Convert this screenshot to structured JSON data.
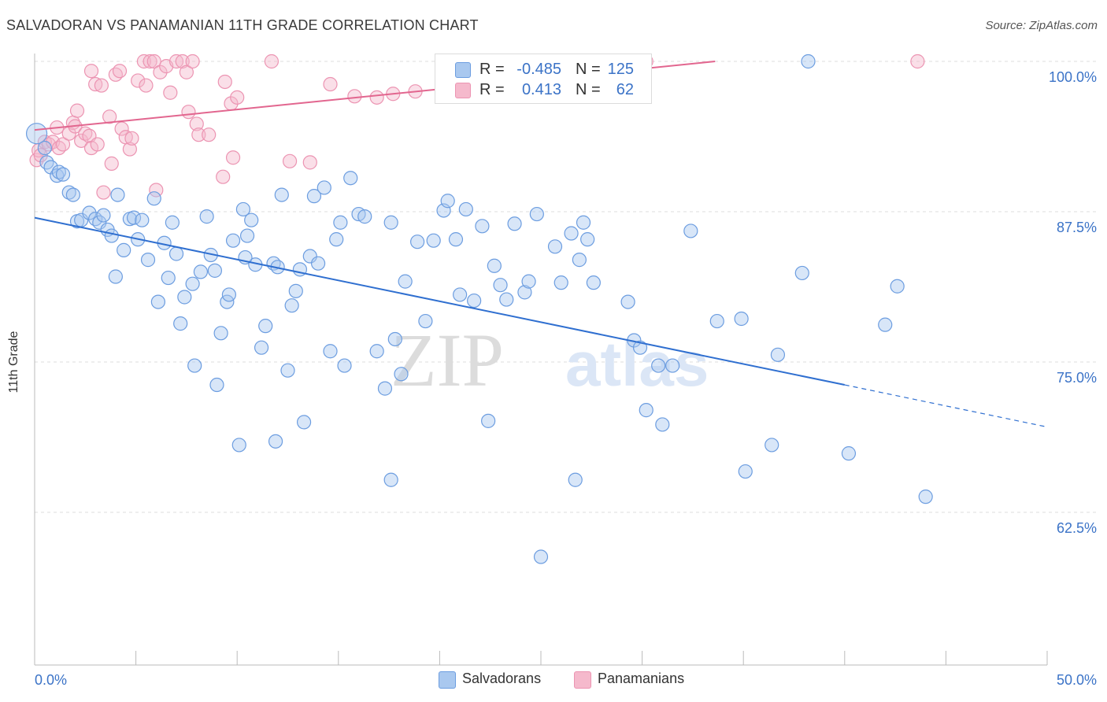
{
  "title": "SALVADORAN VS PANAMANIAN 11TH GRADE CORRELATION CHART",
  "source": "Source: ZipAtlas.com",
  "watermark": {
    "zip": "ZIP",
    "atlas": "atlas"
  },
  "colors": {
    "blue_fill": "#a9c8ef",
    "blue_stroke": "#6c9de0",
    "blue_line": "#2f6fd0",
    "pink_fill": "#f5b9cc",
    "pink_stroke": "#ec94b2",
    "pink_line": "#e2668f",
    "tick_label": "#3b73c7",
    "grid": "#dddddd"
  },
  "legend_top": {
    "rows": [
      {
        "series": "Salvadorans",
        "r_label": "R =",
        "r_value": "-0.485",
        "n_label": "N =",
        "n_value": "125"
      },
      {
        "series": "Panamanians",
        "r_label": "R =",
        "r_value": "0.413",
        "n_label": "N =",
        "n_value": "62"
      }
    ]
  },
  "legend_bottom": [
    {
      "label": "Salvadorans",
      "color_key": "blue"
    },
    {
      "label": "Panamanians",
      "color_key": "pink"
    }
  ],
  "chart_data": {
    "type": "scatter",
    "title": "SALVADORAN VS PANAMANIAN 11TH GRADE CORRELATION CHART",
    "xlabel": "",
    "ylabel": "11th Grade",
    "xlim": [
      0,
      50
    ],
    "ylim": [
      51,
      101.2
    ],
    "x_tick_labels": [
      "0.0%",
      "50.0%"
    ],
    "y_ticks": [
      62.5,
      75.0,
      87.5,
      100.0
    ],
    "y_tick_labels": [
      "62.5%",
      "75.0%",
      "87.5%",
      "100.0%"
    ],
    "grid": "horizontal dashed",
    "legend_position": "top-center",
    "series": [
      {
        "name": "Salvadorans",
        "color": "blue",
        "trend": {
          "x": [
            0,
            40
          ],
          "y": [
            87.0,
            73.1
          ],
          "dashed_x": [
            40,
            50
          ],
          "dashed_y": [
            73.1,
            69.6
          ]
        },
        "points": [
          [
            0.1,
            94.0
          ],
          [
            0.5,
            92.8
          ],
          [
            0.6,
            91.6
          ],
          [
            0.8,
            91.2
          ],
          [
            1.1,
            90.5
          ],
          [
            1.2,
            90.8
          ],
          [
            1.4,
            90.6
          ],
          [
            1.7,
            89.1
          ],
          [
            1.9,
            88.9
          ],
          [
            2.1,
            86.7
          ],
          [
            2.3,
            86.8
          ],
          [
            2.7,
            87.4
          ],
          [
            3.0,
            86.9
          ],
          [
            3.2,
            86.6
          ],
          [
            3.4,
            87.2
          ],
          [
            3.6,
            86.0
          ],
          [
            3.8,
            85.5
          ],
          [
            4.1,
            88.9
          ],
          [
            4.0,
            82.1
          ],
          [
            4.4,
            84.3
          ],
          [
            4.7,
            86.9
          ],
          [
            4.9,
            87.0
          ],
          [
            5.1,
            85.2
          ],
          [
            5.3,
            86.8
          ],
          [
            5.6,
            83.5
          ],
          [
            5.9,
            88.6
          ],
          [
            6.1,
            80.0
          ],
          [
            6.4,
            84.9
          ],
          [
            6.6,
            82.0
          ],
          [
            6.8,
            86.6
          ],
          [
            7.0,
            84.0
          ],
          [
            7.2,
            78.2
          ],
          [
            7.4,
            80.4
          ],
          [
            7.8,
            81.5
          ],
          [
            7.9,
            74.7
          ],
          [
            8.2,
            82.5
          ],
          [
            8.5,
            87.1
          ],
          [
            8.7,
            83.9
          ],
          [
            8.9,
            82.6
          ],
          [
            9.0,
            73.1
          ],
          [
            9.2,
            77.4
          ],
          [
            9.5,
            80.0
          ],
          [
            9.6,
            80.6
          ],
          [
            9.8,
            85.1
          ],
          [
            10.1,
            68.1
          ],
          [
            10.3,
            87.7
          ],
          [
            10.5,
            85.5
          ],
          [
            10.7,
            86.8
          ],
          [
            10.9,
            83.1
          ],
          [
            11.2,
            76.2
          ],
          [
            11.4,
            78.0
          ],
          [
            11.8,
            83.2
          ],
          [
            11.9,
            68.4
          ],
          [
            12.0,
            82.9
          ],
          [
            12.2,
            88.9
          ],
          [
            12.5,
            74.3
          ],
          [
            12.7,
            79.7
          ],
          [
            12.9,
            80.9
          ],
          [
            13.1,
            82.7
          ],
          [
            13.3,
            70.0
          ],
          [
            13.6,
            83.8
          ],
          [
            13.8,
            88.8
          ],
          [
            14.0,
            83.2
          ],
          [
            14.3,
            89.5
          ],
          [
            14.6,
            75.9
          ],
          [
            14.9,
            85.2
          ],
          [
            15.1,
            86.6
          ],
          [
            15.3,
            74.7
          ],
          [
            15.6,
            90.3
          ],
          [
            16.0,
            87.3
          ],
          [
            16.3,
            87.1
          ],
          [
            16.9,
            75.9
          ],
          [
            17.3,
            72.8
          ],
          [
            17.6,
            86.6
          ],
          [
            17.8,
            76.9
          ],
          [
            18.1,
            74.0
          ],
          [
            18.3,
            81.7
          ],
          [
            18.9,
            85.0
          ],
          [
            19.3,
            78.4
          ],
          [
            19.7,
            85.1
          ],
          [
            20.2,
            87.6
          ],
          [
            20.4,
            88.4
          ],
          [
            20.8,
            85.2
          ],
          [
            21.0,
            80.6
          ],
          [
            21.3,
            87.7
          ],
          [
            21.7,
            80.1
          ],
          [
            22.1,
            86.3
          ],
          [
            22.4,
            70.1
          ],
          [
            22.7,
            83.0
          ],
          [
            23.0,
            81.4
          ],
          [
            23.3,
            80.2
          ],
          [
            23.7,
            86.5
          ],
          [
            24.2,
            80.8
          ],
          [
            24.4,
            81.7
          ],
          [
            24.8,
            87.3
          ],
          [
            25.7,
            84.6
          ],
          [
            26.0,
            81.6
          ],
          [
            26.5,
            85.7
          ],
          [
            26.9,
            83.5
          ],
          [
            27.1,
            86.6
          ],
          [
            27.3,
            85.2
          ],
          [
            27.6,
            81.6
          ],
          [
            26.5,
            100.0
          ],
          [
            25.0,
            58.8
          ],
          [
            26.7,
            65.2
          ],
          [
            29.3,
            80.0
          ],
          [
            29.6,
            76.8
          ],
          [
            29.9,
            76.2
          ],
          [
            30.2,
            71.0
          ],
          [
            30.8,
            74.7
          ],
          [
            31.0,
            69.8
          ],
          [
            31.5,
            74.7
          ],
          [
            32.4,
            85.9
          ],
          [
            33.7,
            78.4
          ],
          [
            34.9,
            78.6
          ],
          [
            35.1,
            65.9
          ],
          [
            36.4,
            68.1
          ],
          [
            36.7,
            75.6
          ],
          [
            37.9,
            82.4
          ],
          [
            40.2,
            67.4
          ],
          [
            38.2,
            100.0
          ],
          [
            42.0,
            78.1
          ],
          [
            42.6,
            81.3
          ],
          [
            44.0,
            63.8
          ],
          [
            17.6,
            65.2
          ],
          [
            10.4,
            83.7
          ]
        ]
      },
      {
        "name": "Panamanians",
        "color": "pink",
        "trend": {
          "x": [
            0,
            33.6
          ],
          "y": [
            94.3,
            100.0
          ]
        },
        "points": [
          [
            0.1,
            91.8
          ],
          [
            0.2,
            92.6
          ],
          [
            0.3,
            92.2
          ],
          [
            0.5,
            93.3
          ],
          [
            0.7,
            93.1
          ],
          [
            0.9,
            93.3
          ],
          [
            1.1,
            94.5
          ],
          [
            1.2,
            92.8
          ],
          [
            1.4,
            93.1
          ],
          [
            1.7,
            94.0
          ],
          [
            1.9,
            94.9
          ],
          [
            2.0,
            94.6
          ],
          [
            2.1,
            95.9
          ],
          [
            2.3,
            93.4
          ],
          [
            2.5,
            94.0
          ],
          [
            2.7,
            93.8
          ],
          [
            2.8,
            92.8
          ],
          [
            3.1,
            93.1
          ],
          [
            2.8,
            99.2
          ],
          [
            3.0,
            98.1
          ],
          [
            3.3,
            98.0
          ],
          [
            3.4,
            89.1
          ],
          [
            3.7,
            95.4
          ],
          [
            3.8,
            91.5
          ],
          [
            4.0,
            98.9
          ],
          [
            4.2,
            99.2
          ],
          [
            4.3,
            94.4
          ],
          [
            4.5,
            93.7
          ],
          [
            4.7,
            92.7
          ],
          [
            4.8,
            93.6
          ],
          [
            5.1,
            98.4
          ],
          [
            5.4,
            100.0
          ],
          [
            5.5,
            98.0
          ],
          [
            5.7,
            100.0
          ],
          [
            5.9,
            100.0
          ],
          [
            6.0,
            89.3
          ],
          [
            6.2,
            99.1
          ],
          [
            6.5,
            99.6
          ],
          [
            6.7,
            97.4
          ],
          [
            7.0,
            100.0
          ],
          [
            7.3,
            100.0
          ],
          [
            7.5,
            99.1
          ],
          [
            7.6,
            95.8
          ],
          [
            7.8,
            100.0
          ],
          [
            8.0,
            94.8
          ],
          [
            8.1,
            93.9
          ],
          [
            8.6,
            93.9
          ],
          [
            9.3,
            90.4
          ],
          [
            9.4,
            98.3
          ],
          [
            9.7,
            96.5
          ],
          [
            9.8,
            92.0
          ],
          [
            10.0,
            97.0
          ],
          [
            11.7,
            100.0
          ],
          [
            12.6,
            91.7
          ],
          [
            13.6,
            91.6
          ],
          [
            14.6,
            98.1
          ],
          [
            15.8,
            97.1
          ],
          [
            16.9,
            97.0
          ],
          [
            17.7,
            97.3
          ],
          [
            18.8,
            97.5
          ],
          [
            30.2,
            100.0
          ],
          [
            43.6,
            100.0
          ]
        ]
      }
    ]
  }
}
